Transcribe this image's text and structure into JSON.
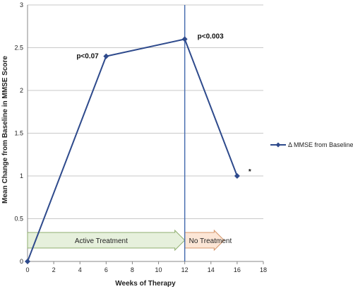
{
  "chart_data": {
    "type": "line",
    "xlabel": "Weeks of Therapy",
    "ylabel": "Mean Change from Baseline in MMSE Score",
    "xlim": [
      0,
      18
    ],
    "ylim": [
      0,
      3
    ],
    "xticks": [
      0,
      2,
      4,
      6,
      8,
      10,
      12,
      14,
      16,
      18
    ],
    "yticks": [
      0,
      0.5,
      1,
      1.5,
      2,
      2.5,
      3
    ],
    "grid": "horizontal",
    "legend_position": "right",
    "series": [
      {
        "name": "Δ MMSE from Baseline",
        "color": "#2e4a8c",
        "marker": "diamond",
        "x": [
          0,
          6,
          12,
          16
        ],
        "y": [
          0,
          2.4,
          2.6,
          1.0
        ]
      }
    ],
    "annotations": [
      {
        "text": "p<0.07",
        "x": 6,
        "y": 2.4
      },
      {
        "text": "p<0.003",
        "x": 12,
        "y": 2.6
      },
      {
        "text": "*",
        "x": 16,
        "y": 1.0
      }
    ],
    "vertical_line": {
      "x": 12,
      "color": "#4a6fb0"
    },
    "phases": [
      {
        "label": "Active Treatment",
        "x_start": 0,
        "x_end": 12,
        "fill": "#e6f0dc",
        "stroke": "#8fae6f"
      },
      {
        "label": "No Treatment",
        "x_start": 12,
        "x_end": 15,
        "fill": "#fce6d6",
        "stroke": "#d4956a"
      }
    ]
  }
}
